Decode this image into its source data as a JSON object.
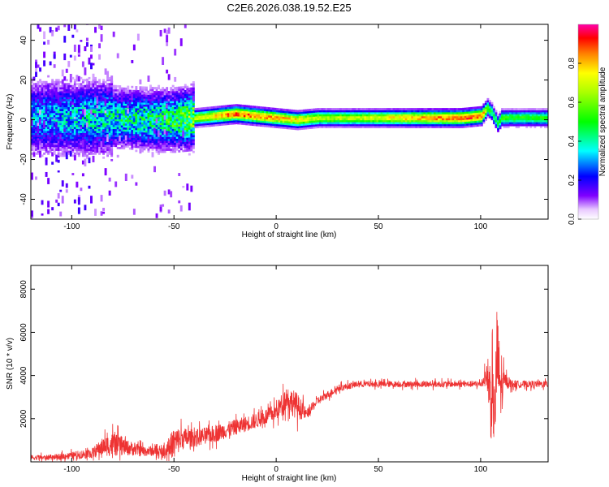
{
  "title": "C2E6.2026.038.19.52.E25",
  "chart_data": [
    {
      "type": "heatmap",
      "xlabel": "Height of straight line (km)",
      "ylabel": "Frequency (Hz)",
      "xlim": [
        -120,
        133
      ],
      "ylim": [
        -50,
        48
      ],
      "x_ticks": [
        -100,
        -50,
        0,
        50,
        100
      ],
      "y_ticks": [
        -40,
        -20,
        0,
        20,
        40
      ],
      "colorbar": {
        "label": "Normalized spectral amplitude",
        "range": [
          0,
          1
        ],
        "ticks": [
          0.0,
          0.2,
          0.4,
          0.6,
          0.8
        ]
      },
      "ridge": {
        "x": [
          -120,
          -100,
          -80,
          -60,
          -50,
          -40,
          -30,
          -20,
          -10,
          0,
          10,
          20,
          30,
          50,
          70,
          90,
          100,
          103,
          105,
          108,
          110,
          120,
          133
        ],
        "y": [
          1,
          1,
          1,
          0,
          0,
          1,
          2,
          3,
          2,
          1,
          0,
          1,
          1,
          1,
          1,
          1,
          2,
          6,
          4,
          -2,
          1,
          1,
          1
        ],
        "amplitude": [
          0.35,
          0.4,
          0.45,
          0.5,
          0.55,
          0.7,
          0.8,
          0.95,
          0.9,
          0.85,
          0.8,
          0.7,
          0.7,
          0.75,
          0.85,
          0.95,
          0.95,
          0.6,
          0.5,
          0.5,
          0.55,
          0.55,
          0.55
        ]
      }
    },
    {
      "type": "line",
      "xlabel": "Height of straight line (km)",
      "ylabel": "SNR (10 * v/v)",
      "xlim": [
        -120,
        133
      ],
      "ylim": [
        0,
        9100
      ],
      "x_ticks": [
        -100,
        -50,
        0,
        50,
        100
      ],
      "y_ticks": [
        2000,
        4000,
        6000,
        8000
      ],
      "series": [
        {
          "color": "#ee3333",
          "envelope": {
            "x": [
              -120,
              -110,
              -100,
              -90,
              -85,
              -80,
              -75,
              -70,
              -65,
              -60,
              -55,
              -50,
              -45,
              -40,
              -35,
              -30,
              -20,
              -10,
              0,
              5,
              10,
              15,
              20,
              30,
              40,
              50,
              60,
              70,
              80,
              90,
              100,
              103,
              105,
              107,
              108,
              110,
              112,
              115,
              120,
              133
            ],
            "y": [
              200,
              200,
              300,
              400,
              700,
              800,
              700,
              600,
              500,
              500,
              400,
              900,
              1100,
              1100,
              1200,
              1300,
              1600,
              1900,
              2300,
              3000,
              2600,
              2200,
              2800,
              3400,
              3600,
              3600,
              3600,
              3600,
              3600,
              3600,
              3600,
              4000,
              3000,
              2200,
              5000,
              3200,
              3800,
              3600,
              3600,
              3600
            ],
            "noise": [
              150,
              150,
              200,
              300,
              500,
              700,
              500,
              400,
              300,
              300,
              300,
              900,
              600,
              500,
              500,
              500,
              450,
              450,
              500,
              700,
              800,
              300,
              250,
              200,
              180,
              180,
              180,
              180,
              180,
              180,
              180,
              600,
              2500,
              1600,
              3000,
              1500,
              400,
              250,
              200,
              200
            ]
          }
        }
      ]
    }
  ]
}
